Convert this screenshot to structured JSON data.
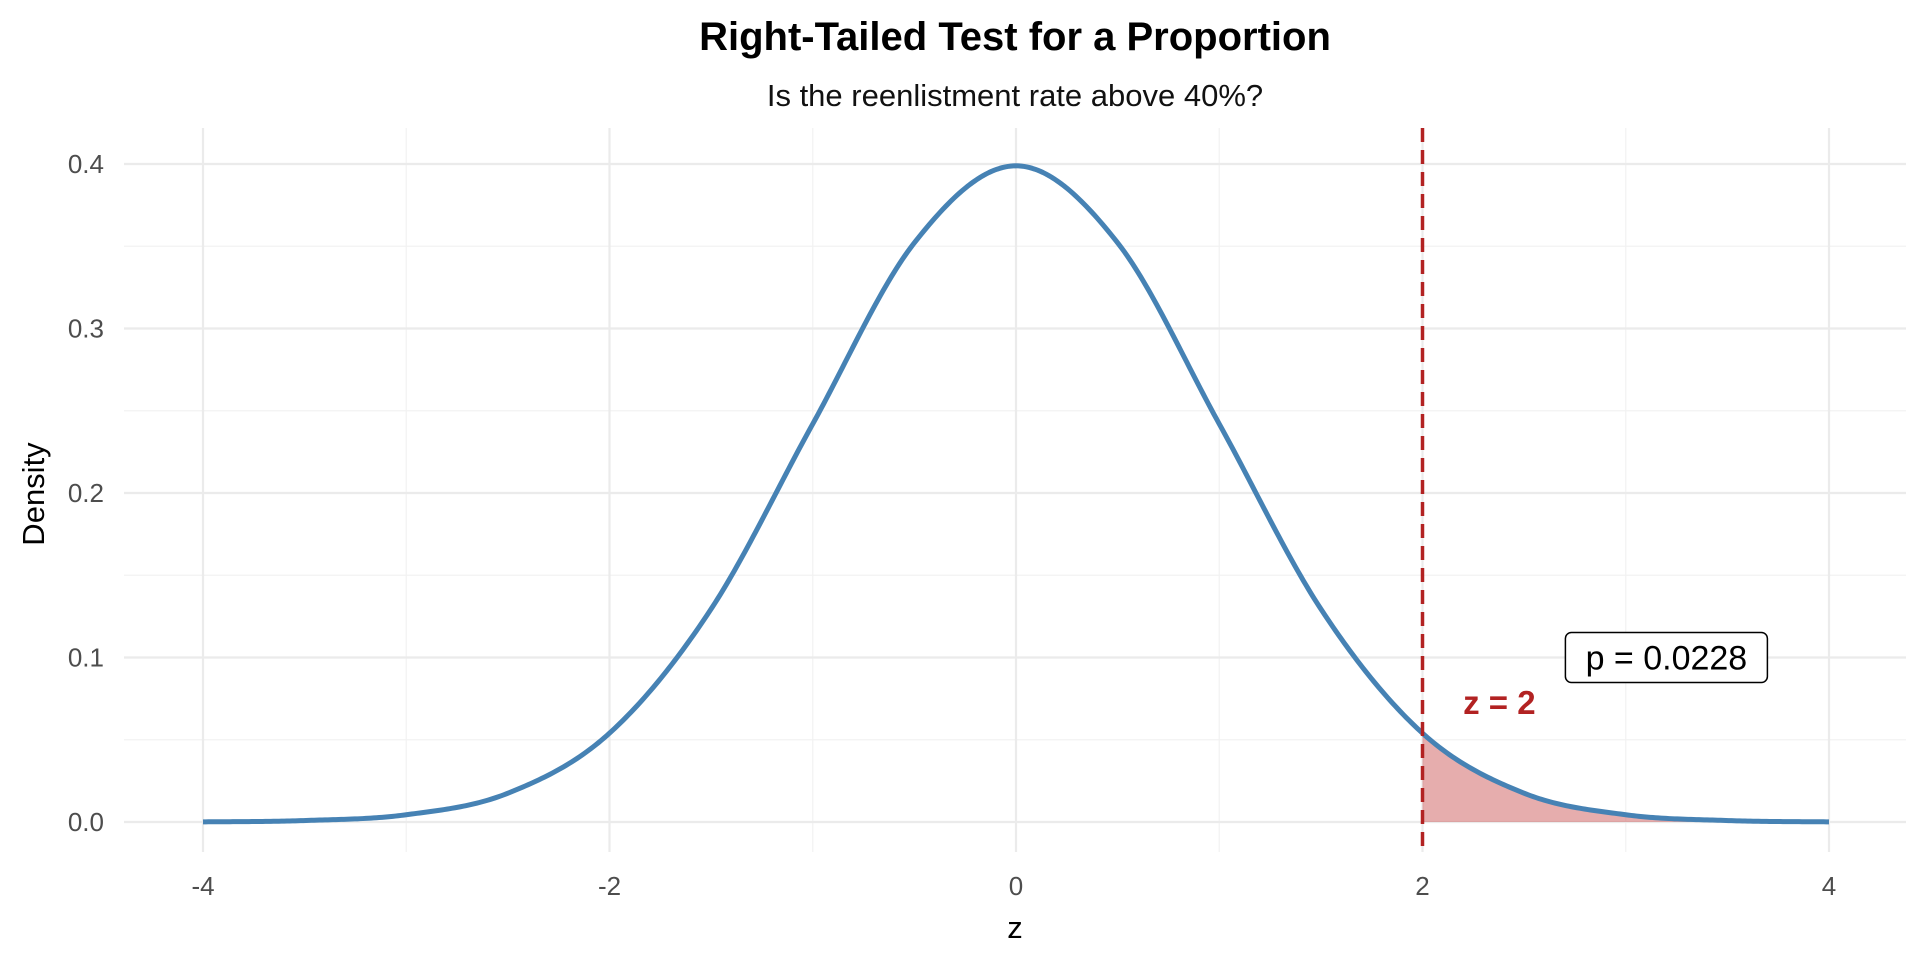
{
  "chart_data": {
    "type": "area",
    "title": "Right-Tailed Test for a Proportion",
    "subtitle": "Is the reenlistment rate above 40%?",
    "xlabel": "z",
    "ylabel": "Density",
    "xlim": [
      -4,
      4
    ],
    "ylim": [
      0,
      0.4
    ],
    "x_ticks": [
      -4,
      -2,
      0,
      2,
      4
    ],
    "x_tick_labels": [
      "-4",
      "-2",
      "0",
      "2",
      "4"
    ],
    "y_ticks": [
      0.0,
      0.1,
      0.2,
      0.3,
      0.4
    ],
    "y_tick_labels": [
      "0.0",
      "0.1",
      "0.2",
      "0.3",
      "0.4"
    ],
    "grid": true,
    "series": [
      {
        "kind": "line",
        "color": "#4682b4",
        "x": [
          -4,
          -3.5,
          -3,
          -2.5,
          -2,
          -1.5,
          -1,
          -0.5,
          0,
          0.5,
          1,
          1.5,
          2,
          2.5,
          3,
          3.5,
          4
        ],
        "y": [
          0.0001,
          0.0009,
          0.0044,
          0.0175,
          0.054,
          0.1295,
          0.242,
          0.3521,
          0.3989,
          0.3521,
          0.242,
          0.1295,
          0.054,
          0.0175,
          0.0044,
          0.0009,
          0.0001
        ]
      }
    ],
    "shaded_region": {
      "from": 2,
      "to": 4,
      "color": "#cd5c5c"
    },
    "critical_line": {
      "x": 2,
      "color": "#b22222",
      "style": "dashed"
    },
    "annotations": {
      "z_label": {
        "text": "z = 2",
        "x": 2.2,
        "y": 0.073,
        "color": "#b22222"
      },
      "p_label": {
        "text": "p = 0.0228",
        "x": 3.2,
        "y": 0.1
      }
    }
  }
}
